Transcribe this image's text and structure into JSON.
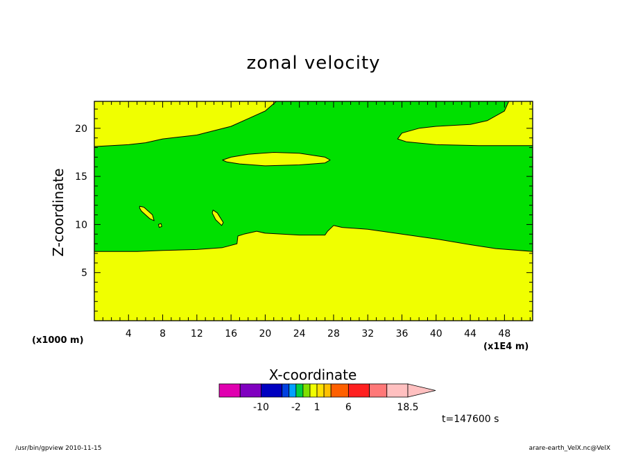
{
  "footer": {
    "left": "/usr/bin/gpview   2010-11-15",
    "right": "arare-earth_VelX.nc@VelX"
  },
  "time_label": "t=147600 s",
  "chart_data": {
    "type": "contour",
    "title": "zonal velocity",
    "xlabel": "X-coordinate",
    "ylabel": "Z-coordinate",
    "x_unit_left": "(x1000 m)",
    "x_unit_right": "(x1E4 m)",
    "x_ticks": [
      4,
      8,
      12,
      16,
      20,
      24,
      28,
      32,
      36,
      40,
      44,
      48
    ],
    "y_ticks": [
      5,
      10,
      15,
      20
    ],
    "xlim": [
      0,
      51.3
    ],
    "ylim": [
      0,
      22.8
    ],
    "fill_colors": {
      "low": "#f0ff00",
      "high": "#00e000"
    },
    "regions": [
      {
        "level": "high",
        "name": "main green band",
        "boundary": [
          [
            0,
            18.1
          ],
          [
            4,
            18.3
          ],
          [
            6,
            18.5
          ],
          [
            8,
            18.9
          ],
          [
            12,
            19.3
          ],
          [
            16,
            20.2
          ],
          [
            18,
            21.0
          ],
          [
            20,
            21.8
          ],
          [
            21.3,
            22.8
          ],
          [
            48.5,
            22.8
          ],
          [
            48,
            21.8
          ],
          [
            46,
            20.8
          ],
          [
            44,
            20.4
          ],
          [
            40,
            20.2
          ],
          [
            38,
            20.0
          ],
          [
            36,
            19.5
          ],
          [
            35.5,
            18.9
          ],
          [
            36.5,
            18.6
          ],
          [
            40,
            18.3
          ],
          [
            45,
            18.2
          ],
          [
            51.3,
            18.2
          ],
          [
            51.3,
            7.2
          ],
          [
            47,
            7.5
          ],
          [
            44,
            7.9
          ],
          [
            40,
            8.5
          ],
          [
            36,
            9.0
          ],
          [
            32,
            9.5
          ],
          [
            29,
            9.7
          ],
          [
            28,
            9.9
          ],
          [
            27.3,
            9.3
          ],
          [
            27,
            8.9
          ],
          [
            24,
            8.9
          ],
          [
            20,
            9.1
          ],
          [
            19,
            9.3
          ],
          [
            17.5,
            9.0
          ],
          [
            16.8,
            8.8
          ],
          [
            16.7,
            8.0
          ],
          [
            15,
            7.6
          ],
          [
            12,
            7.4
          ],
          [
            8,
            7.3
          ],
          [
            5,
            7.2
          ],
          [
            0,
            7.2
          ]
        ]
      },
      {
        "level": "low",
        "name": "mid yellow lens",
        "boundary": [
          [
            15,
            16.7
          ],
          [
            16,
            17.0
          ],
          [
            18,
            17.3
          ],
          [
            21,
            17.5
          ],
          [
            24,
            17.4
          ],
          [
            27,
            17.0
          ],
          [
            27.6,
            16.7
          ],
          [
            27,
            16.4
          ],
          [
            24,
            16.2
          ],
          [
            20,
            16.1
          ],
          [
            17,
            16.3
          ],
          [
            15.5,
            16.5
          ]
        ]
      },
      {
        "level": "low",
        "name": "small yellow lens left",
        "boundary": [
          [
            5.3,
            11.9
          ],
          [
            5.8,
            11.8
          ],
          [
            6.8,
            11.0
          ],
          [
            7.0,
            10.4
          ],
          [
            6.5,
            10.6
          ],
          [
            5.5,
            11.4
          ],
          [
            5.3,
            11.7
          ]
        ]
      },
      {
        "level": "low",
        "name": "small yellow lens right",
        "boundary": [
          [
            13.9,
            11.5
          ],
          [
            14.4,
            11.2
          ],
          [
            15.1,
            10.2
          ],
          [
            14.9,
            9.9
          ],
          [
            14.2,
            10.5
          ],
          [
            13.8,
            11.2
          ]
        ]
      },
      {
        "level": "low",
        "name": "tiny yellow dot",
        "boundary": [
          [
            7.5,
            10.0
          ],
          [
            7.8,
            10.1
          ],
          [
            7.9,
            9.8
          ],
          [
            7.6,
            9.7
          ]
        ]
      }
    ],
    "colorbar": {
      "colors": [
        "#e000b0",
        "#8000c0",
        "#0000c0",
        "#0040e0",
        "#00a0ff",
        "#00d040",
        "#80e000",
        "#f0ff00",
        "#ffe000",
        "#ffc000",
        "#ff6000",
        "#ff2020",
        "#ff7878",
        "#ffc0c0"
      ],
      "weights": [
        3,
        3,
        3,
        1,
        1,
        1,
        1,
        1,
        1,
        1,
        2.5,
        3,
        2.5,
        3
      ],
      "tick_labels": [
        {
          "label": "-10",
          "after_box": 2
        },
        {
          "label": "-2",
          "after_box": 5
        },
        {
          "label": "1",
          "after_box": 8
        },
        {
          "label": "6",
          "after_box": 11
        },
        {
          "label": "18.5",
          "after_box": 14
        }
      ],
      "extend_color": "#ffc0c0"
    }
  }
}
